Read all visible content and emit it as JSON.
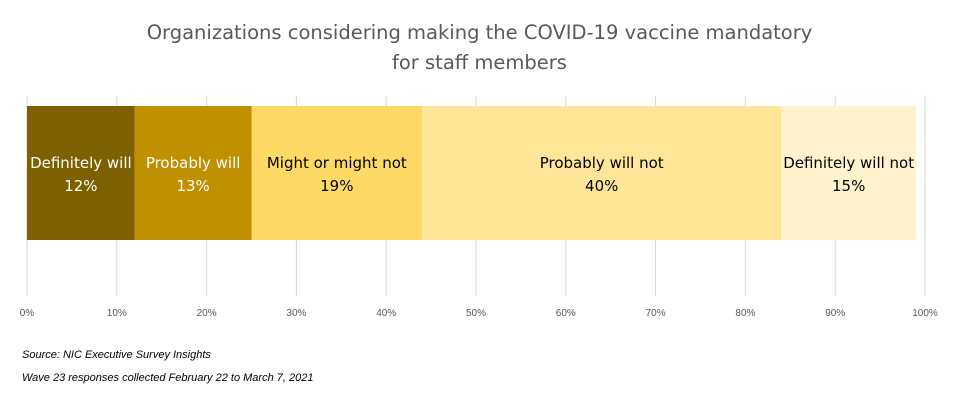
{
  "title": {
    "line1": "Organizations considering making the COVID-19 vaccine mandatory",
    "line2": "for staff members"
  },
  "chart_data": {
    "type": "bar",
    "orientation": "horizontal-stacked-100",
    "xlim": [
      0,
      100
    ],
    "x_ticks": [
      "0%",
      "10%",
      "20%",
      "30%",
      "40%",
      "50%",
      "60%",
      "70%",
      "80%",
      "90%",
      "100%"
    ],
    "grid": true,
    "categories": [
      ""
    ],
    "series": [
      {
        "name": "Definitely will",
        "values": [
          12
        ],
        "label": "12%",
        "color": "#7f6000",
        "text_color": "#ffffff"
      },
      {
        "name": "Probably will",
        "values": [
          13
        ],
        "label": "13%",
        "color": "#bf9000",
        "text_color": "#ffffff"
      },
      {
        "name": "Might or might not",
        "values": [
          19
        ],
        "label": "19%",
        "color": "#ffd966",
        "text_color": "#000000"
      },
      {
        "name": "Probably will not",
        "values": [
          40
        ],
        "label": "40%",
        "color": "#ffe699",
        "text_color": "#000000"
      },
      {
        "name": "Definitely will not",
        "values": [
          15
        ],
        "label": "15%",
        "color": "#fff2cc",
        "text_color": "#000000"
      }
    ]
  },
  "notes": {
    "source": "Source: NIC Executive Survey Insights",
    "wave": "Wave 23 responses collected  February 22 to March 7, 2021"
  }
}
